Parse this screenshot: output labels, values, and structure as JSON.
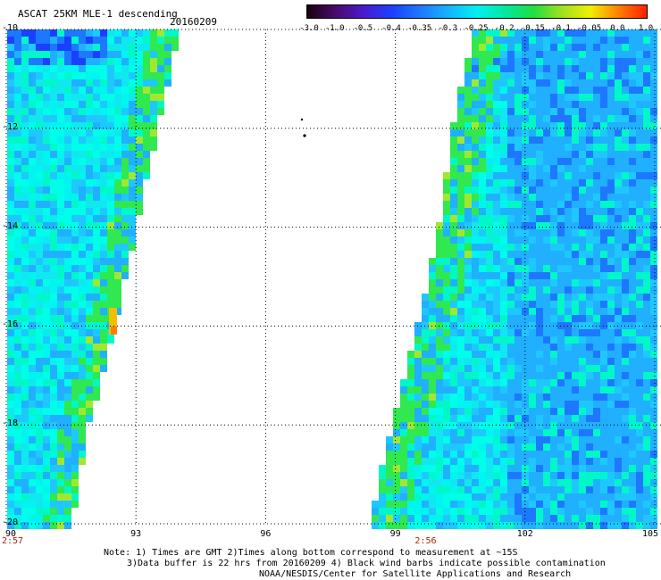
{
  "header": {
    "title": "ASCAT 25KM MLE-1 descending",
    "date": "20160209"
  },
  "colorbar": {
    "tick_labels": [
      "-3.0",
      "-1.0",
      "-0.5",
      "-0.4",
      "-0.35",
      "-0.3",
      "-0.25",
      "-0.2",
      "-0.15",
      "-0.1",
      "-0.05",
      "0.0",
      "1.0"
    ],
    "colors": [
      "#1a0010",
      "#4a0a6a",
      "#4a1ad0",
      "#1a40ff",
      "#1e78ff",
      "#15b4ff",
      "#00f0f0",
      "#00e8a0",
      "#20e040",
      "#a0e020",
      "#f0f000",
      "#ff8000",
      "#ff2000"
    ]
  },
  "axes": {
    "y_labels": [
      "-10",
      "-12",
      "-14",
      "-16",
      "-18",
      "-20"
    ],
    "x_labels": [
      "90",
      "93",
      "96",
      "99",
      "102",
      "105"
    ],
    "time_labels": [
      {
        "text": "2:57",
        "lon": 90
      },
      {
        "text": "2:56",
        "lon": 99.7
      }
    ]
  },
  "map": {
    "lon_range": [
      90,
      105
    ],
    "lat_range": [
      -20,
      -10
    ],
    "swaths": [
      {
        "name": "west-swath",
        "west_lon": 90.0,
        "east_edge": [
          [
            -10,
            94.0
          ],
          [
            -12,
            93.5
          ],
          [
            -14,
            93.0
          ],
          [
            -16,
            92.5
          ],
          [
            -18,
            91.9
          ],
          [
            -20,
            91.5
          ]
        ]
      },
      {
        "name": "east-swath",
        "west_edge": [
          [
            -10,
            100.8
          ],
          [
            -12,
            100.3
          ],
          [
            -14,
            100.0
          ],
          [
            -16,
            99.5
          ],
          [
            -18,
            98.9
          ],
          [
            -20,
            98.4
          ]
        ],
        "east_lon": 105.0
      }
    ]
  },
  "notes": {
    "line1": "Note: 1) Times are GMT 2)Times along bottom correspond to measurement at ~15S",
    "line2": "3)Data buffer is 22 hrs from 20160209 4) Black wind barbs indicate possible contamination",
    "line3": "NOAA/NESDIS/Center for Satellite Applications and Research"
  }
}
